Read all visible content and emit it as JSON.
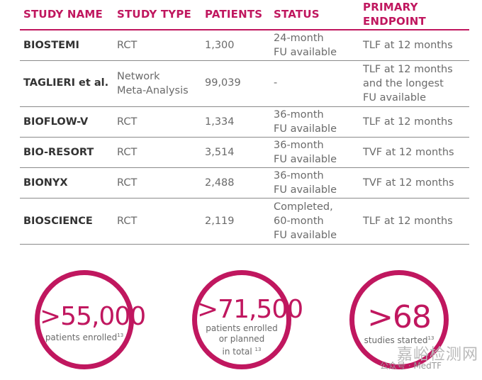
{
  "headers": {
    "study_name": "STUDY NAME",
    "study_type": "STUDY TYPE",
    "patients": "PATIENTS",
    "status": "STATUS",
    "endpoint_line1": "PRIMARY",
    "endpoint_line2": "ENDPOINT"
  },
  "rows": [
    {
      "name": "BIOSTEMI",
      "type": "RCT",
      "patients": "1,300",
      "status": [
        "24-month",
        "FU available"
      ],
      "endpoint": [
        "TLF at 12 months"
      ]
    },
    {
      "name": "TAGLIERI et al.",
      "type": [
        "Network",
        "Meta-Analysis"
      ],
      "patients": "99,039",
      "status": [
        "-"
      ],
      "endpoint": [
        "TLF at 12 months",
        "and the longest",
        "FU available"
      ]
    },
    {
      "name": "BIOFLOW-V",
      "type": "RCT",
      "patients": "1,334",
      "status": [
        "36-month",
        "FU available"
      ],
      "endpoint": [
        "TLF at 12 months"
      ]
    },
    {
      "name": "BIO-RESORT",
      "type": "RCT",
      "patients": "3,514",
      "status": [
        "36-month",
        "FU available"
      ],
      "endpoint": [
        "TVF at 12 months"
      ]
    },
    {
      "name": "BIONYX",
      "type": "RCT",
      "patients": "2,488",
      "status": [
        "36-month",
        "FU available"
      ],
      "endpoint": [
        "TVF at 12 months"
      ]
    },
    {
      "name": "BIOSCIENCE",
      "type": "RCT",
      "patients": "2,119",
      "status": [
        "Completed,",
        "60-month",
        "FU available"
      ],
      "endpoint": [
        "TLF at 12 months"
      ]
    }
  ],
  "stats": [
    {
      "value": ">55,000",
      "label_lines": [
        "patients enrolled"
      ],
      "sup": "13"
    },
    {
      "value": ">71,500",
      "label_lines": [
        "patients enrolled",
        "or planned",
        "in total"
      ],
      "sup": "13"
    },
    {
      "value": ">68",
      "label_lines": [
        "studies started"
      ],
      "sup": "13"
    }
  ],
  "watermark": {
    "text": "嘉峪检测网",
    "caption": "公众号 · MedTF"
  }
}
